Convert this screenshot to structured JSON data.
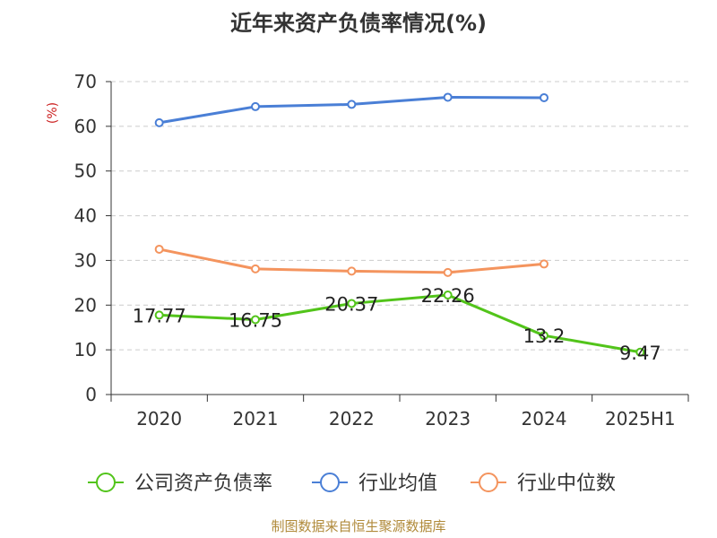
{
  "chart_data": {
    "type": "line",
    "title": "近年来资产负债率情况(%)",
    "ylabel": "(%)",
    "ylim": [
      0,
      70
    ],
    "yticks": [
      0,
      10,
      20,
      30,
      40,
      50,
      60,
      70
    ],
    "categories": [
      "2020",
      "2021",
      "2022",
      "2023",
      "2024",
      "2025H1"
    ],
    "grid": true,
    "legend_position": "bottom",
    "series": [
      {
        "name": "公司资产负债率",
        "color": "#52c41a",
        "values": [
          17.77,
          16.75,
          20.37,
          22.26,
          13.2,
          9.47
        ],
        "labels": [
          "17.77",
          "16.75",
          "20.37",
          "22.26",
          "13.2",
          "9.47"
        ]
      },
      {
        "name": "行业均值",
        "color": "#4a7fd6",
        "values": [
          60.8,
          64.4,
          64.9,
          66.5,
          66.4,
          null
        ]
      },
      {
        "name": "行业中位数",
        "color": "#f4945e",
        "values": [
          32.5,
          28.1,
          27.6,
          27.3,
          29.2,
          null
        ]
      }
    ]
  },
  "footer": "制图数据来自恒生聚源数据库"
}
